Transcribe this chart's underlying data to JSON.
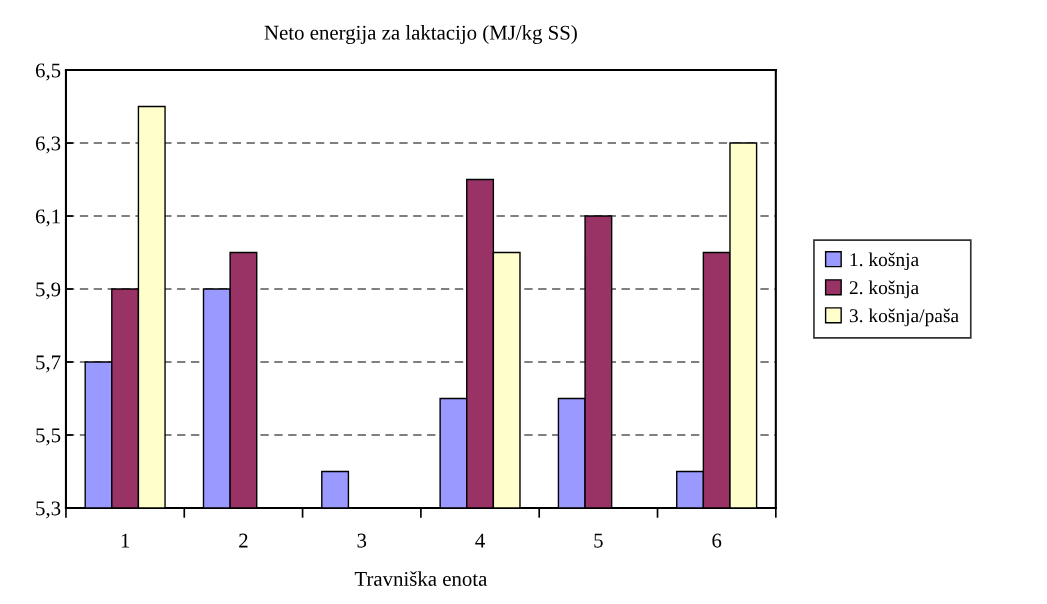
{
  "chart_data": {
    "type": "bar",
    "title": "Neto energija za laktacijo (MJ/kg SS)",
    "xlabel": "Travniška enota",
    "categories": [
      "1",
      "2",
      "3",
      "4",
      "5",
      "6"
    ],
    "series": [
      {
        "name": "1. košnja",
        "color": "#9999ff",
        "values": [
          5.7,
          5.9,
          5.4,
          5.6,
          5.6,
          5.4
        ]
      },
      {
        "name": "2. košnja",
        "color": "#993366",
        "values": [
          5.9,
          6.0,
          null,
          6.2,
          6.1,
          6.0
        ]
      },
      {
        "name": "3. košnja/paša",
        "color": "#ffffcc",
        "values": [
          6.4,
          null,
          null,
          6.0,
          null,
          6.3
        ]
      }
    ],
    "ylim": [
      5.3,
      6.5
    ],
    "yticks": [
      {
        "value": 5.3,
        "label": "5,3"
      },
      {
        "value": 5.5,
        "label": "5,5"
      },
      {
        "value": 5.7,
        "label": "5,7"
      },
      {
        "value": 5.9,
        "label": "5,9"
      },
      {
        "value": 6.1,
        "label": "6,1"
      },
      {
        "value": 6.3,
        "label": "6,3"
      },
      {
        "value": 6.5,
        "label": "6,5"
      }
    ],
    "grid": "y",
    "legend": "right"
  }
}
